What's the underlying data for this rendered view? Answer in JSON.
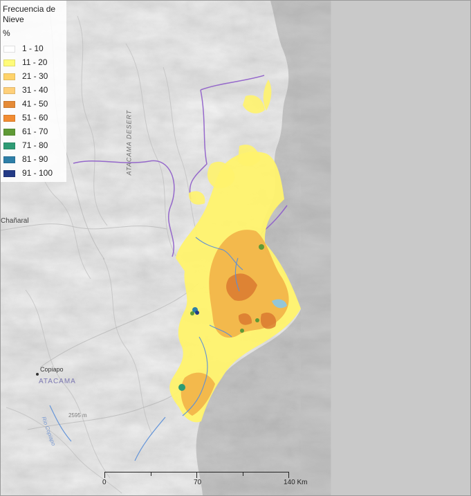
{
  "legend": {
    "title": "Frecuencia de Nieve",
    "unit": "%",
    "items": [
      {
        "label": "1 - 10",
        "color": "#ffffff"
      },
      {
        "label": "11 - 20",
        "color": "#fffb7a"
      },
      {
        "label": "21 - 30",
        "color": "#ffd36a"
      },
      {
        "label": "31 - 40",
        "color": "#ffd07a"
      },
      {
        "label": "41 - 50",
        "color": "#e58a36"
      },
      {
        "label": "51 - 60",
        "color": "#f28c32"
      },
      {
        "label": "61 - 70",
        "color": "#5f9a36"
      },
      {
        "label": "71 - 80",
        "color": "#2e9b74"
      },
      {
        "label": "81 - 90",
        "color": "#2e7fa8"
      },
      {
        "label": "91 - 100",
        "color": "#243b86"
      }
    ]
  },
  "labels": {
    "desert": "ATACAMA DESERT",
    "chanaral": "Chañaral",
    "copiapo": "Copiapo",
    "atacama": "ATACAMA",
    "river": "Rio Copiapo",
    "elevation": "2595 m"
  },
  "scale": {
    "zero": "0",
    "mid": "70",
    "end": "140 Km"
  },
  "colors": {
    "background": "#c9c9c9",
    "relief": "#f5f5f5",
    "boundary": "#8d5bc9",
    "snow_yellow": "#fff36d",
    "snow_orange": "#f0a43d",
    "water": "#5b8fd8"
  }
}
